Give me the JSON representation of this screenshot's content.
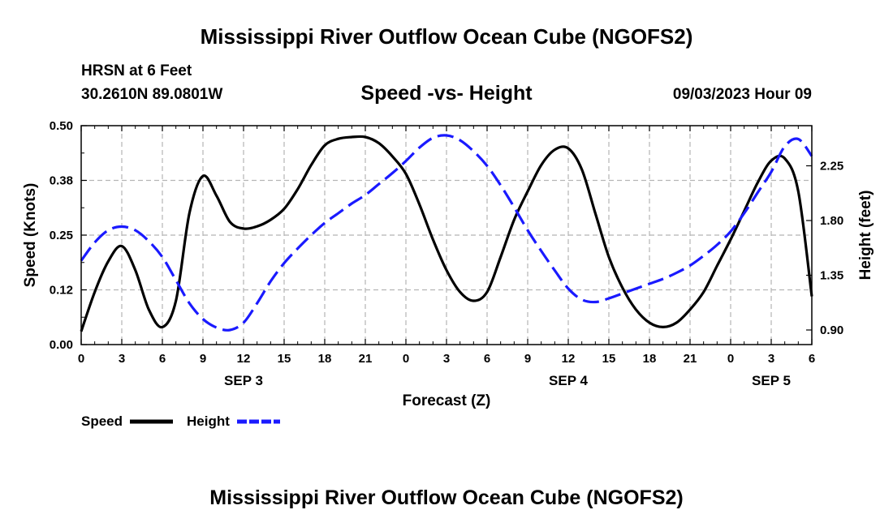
{
  "page": {
    "title_top": "Mississippi River Outflow Ocean Cube (NGOFS2)",
    "title_bottom": "Mississippi River Outflow Ocean Cube (NGOFS2)",
    "station": "HRSN at 6 Feet",
    "coords": "30.2610N  89.0801W",
    "datetime": "09/03/2023 Hour 09"
  },
  "chart_data": {
    "type": "line",
    "title": "Speed -vs- Height",
    "xlabel": "Forecast (Z)",
    "ylabel_left": "Speed (Knots)",
    "ylabel_right": "Height (feet)",
    "x_range_hours": [
      0,
      54
    ],
    "x_tick_labels": [
      "0",
      "3",
      "6",
      "9",
      "12",
      "15",
      "18",
      "21",
      "0",
      "3",
      "6",
      "9",
      "12",
      "15",
      "18",
      "21",
      "0",
      "3",
      "6"
    ],
    "day_labels": [
      {
        "label": "SEP 3",
        "hour": 12
      },
      {
        "label": "SEP 4",
        "hour": 36
      },
      {
        "label": "SEP 5",
        "hour": 51
      }
    ],
    "ylim_left": [
      0.0,
      0.5
    ],
    "yticks_left": [
      "0.00",
      "0.12",
      "0.25",
      "0.38",
      "0.50"
    ],
    "ylim_right": [
      0.78,
      2.58
    ],
    "yticks_right": [
      {
        "label": "0.90",
        "value": 0.9
      },
      {
        "label": "1.35",
        "value": 1.35
      },
      {
        "label": "1.80",
        "value": 1.8
      },
      {
        "label": "2.25",
        "value": 2.25
      }
    ],
    "grid": true,
    "legend": [
      {
        "label": "Speed",
        "color": "#000000",
        "dash": "solid"
      },
      {
        "label": "Height",
        "color": "#1a1aff",
        "dash": "dashed"
      }
    ],
    "series": [
      {
        "name": "Speed",
        "axis": "left",
        "color": "#000000",
        "x": [
          0,
          1,
          2,
          3,
          4,
          5,
          6,
          7,
          8,
          9,
          10,
          11,
          12,
          13,
          14,
          15,
          16,
          17,
          18,
          19,
          20,
          21,
          22,
          23,
          24,
          25,
          26,
          27,
          28,
          29,
          30,
          31,
          32,
          33,
          34,
          35,
          36,
          37,
          38,
          39,
          40,
          41,
          42,
          43,
          44,
          45,
          46,
          47,
          48,
          49,
          50,
          51,
          52,
          53,
          54
        ],
        "values": [
          0.03,
          0.12,
          0.19,
          0.225,
          0.17,
          0.08,
          0.04,
          0.1,
          0.3,
          0.385,
          0.34,
          0.28,
          0.265,
          0.27,
          0.285,
          0.31,
          0.355,
          0.41,
          0.455,
          0.47,
          0.474,
          0.474,
          0.46,
          0.43,
          0.39,
          0.32,
          0.24,
          0.17,
          0.12,
          0.1,
          0.12,
          0.2,
          0.285,
          0.35,
          0.41,
          0.445,
          0.448,
          0.4,
          0.3,
          0.2,
          0.13,
          0.08,
          0.05,
          0.04,
          0.05,
          0.08,
          0.12,
          0.18,
          0.24,
          0.305,
          0.37,
          0.42,
          0.425,
          0.35,
          0.11
        ]
      },
      {
        "name": "Height",
        "axis": "right",
        "color": "#1a1aff",
        "x": [
          0,
          1,
          2,
          3,
          4,
          5,
          6,
          7,
          8,
          9,
          10,
          11,
          12,
          13,
          14,
          15,
          16,
          17,
          18,
          19,
          20,
          21,
          22,
          23,
          24,
          25,
          26,
          27,
          28,
          29,
          30,
          31,
          32,
          33,
          34,
          35,
          36,
          37,
          38,
          39,
          40,
          41,
          42,
          43,
          44,
          45,
          46,
          47,
          48,
          49,
          50,
          51,
          52,
          53,
          54
        ],
        "values": [
          1.47,
          1.62,
          1.72,
          1.75,
          1.72,
          1.63,
          1.5,
          1.31,
          1.12,
          0.99,
          0.92,
          0.9,
          0.96,
          1.12,
          1.3,
          1.45,
          1.57,
          1.68,
          1.78,
          1.86,
          1.94,
          2.01,
          2.1,
          2.19,
          2.29,
          2.4,
          2.48,
          2.5,
          2.46,
          2.37,
          2.25,
          2.09,
          1.91,
          1.72,
          1.55,
          1.39,
          1.24,
          1.15,
          1.13,
          1.16,
          1.2,
          1.24,
          1.28,
          1.32,
          1.37,
          1.43,
          1.51,
          1.6,
          1.71,
          1.86,
          2.03,
          2.2,
          2.41,
          2.47,
          2.33
        ]
      }
    ]
  }
}
